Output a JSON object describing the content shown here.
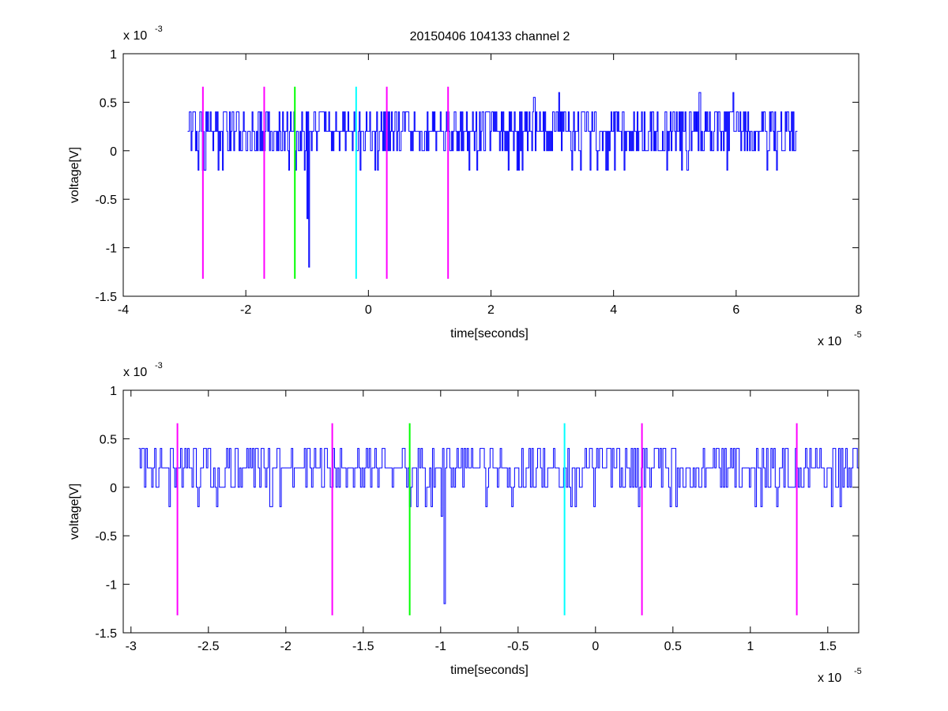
{
  "figure_title": "20150406 104133 channel 2",
  "colors": {
    "signal": "#0000ff",
    "magenta": "#ff00ff",
    "green": "#00ff00",
    "cyan": "#00ffff",
    "axes": "#000000",
    "background": "#ffffff"
  },
  "chart_data": [
    {
      "type": "line",
      "title": "20150406 104133 channel 2",
      "xlabel": "time[seconds]",
      "ylabel": "voltage[V]",
      "x_exponent_label": "x 10",
      "x_exponent": "-5",
      "y_exponent_label": "x 10",
      "y_exponent": "-3",
      "xlim": [
        -4,
        8
      ],
      "ylim": [
        -1.5,
        1
      ],
      "xticks": [
        -4,
        -2,
        0,
        2,
        4,
        6,
        8
      ],
      "xtick_labels": [
        "-4",
        "-2",
        "0",
        "2",
        "4",
        "6",
        "8"
      ],
      "yticks": [
        -1.5,
        -1,
        -0.5,
        0,
        0.5,
        1
      ],
      "ytick_labels": [
        "-1.5",
        "-1",
        "-0.5",
        "0",
        "0.5",
        "1"
      ],
      "grid": false,
      "series": [
        {
          "x_range": [
            -2.95,
            7.0
          ],
          "baseline": 0.2,
          "noise_levels": [
            -0.2,
            0,
            0.2,
            0.4
          ],
          "spikes": [
            {
              "x": -0.97,
              "y": -1.2
            },
            {
              "x": -1.0,
              "y": -0.7
            },
            {
              "x": 2.7,
              "y": 0.55
            },
            {
              "x": 3.1,
              "y": 0.6
            },
            {
              "x": 5.4,
              "y": 0.6
            },
            {
              "x": 5.95,
              "y": 0.6
            }
          ]
        }
      ],
      "markers": [
        {
          "x": -2.7,
          "color": "magenta",
          "y_range": [
            -1.32,
            0.66
          ]
        },
        {
          "x": -1.7,
          "color": "magenta",
          "y_range": [
            -1.32,
            0.66
          ]
        },
        {
          "x": -1.2,
          "color": "green",
          "y_range": [
            -1.32,
            0.66
          ]
        },
        {
          "x": -0.2,
          "color": "cyan",
          "y_range": [
            -1.32,
            0.66
          ]
        },
        {
          "x": 0.3,
          "color": "magenta",
          "y_range": [
            -1.32,
            0.66
          ]
        },
        {
          "x": 1.3,
          "color": "magenta",
          "y_range": [
            -1.32,
            0.66
          ]
        }
      ]
    },
    {
      "type": "line",
      "title": "",
      "xlabel": "time[seconds]",
      "ylabel": "voltage[V]",
      "x_exponent_label": "x 10",
      "x_exponent": "-5",
      "y_exponent_label": "x 10",
      "y_exponent": "-3",
      "xlim": [
        -3.05,
        1.7
      ],
      "ylim": [
        -1.5,
        1
      ],
      "xticks": [
        -3,
        -2.5,
        -2,
        -1.5,
        -1,
        -0.5,
        0,
        0.5,
        1,
        1.5
      ],
      "xtick_labels": [
        "-3",
        "-2.5",
        "-2",
        "-1.5",
        "-1",
        "-0.5",
        "0",
        "0.5",
        "1",
        "1.5"
      ],
      "yticks": [
        -1.5,
        -1,
        -0.5,
        0,
        0.5,
        1
      ],
      "ytick_labels": [
        "-1.5",
        "-1",
        "-0.5",
        "0",
        "0.5",
        "1"
      ],
      "grid": false,
      "series": [
        {
          "x_range": [
            -2.95,
            1.7
          ],
          "baseline": 0.2,
          "noise_levels": [
            -0.2,
            0,
            0.2,
            0.4
          ],
          "spikes": [
            {
              "x": -0.98,
              "y": -1.2
            },
            {
              "x": -1.0,
              "y": -0.3
            },
            {
              "x": -1.2,
              "y": -0.2
            },
            {
              "x": -2.45,
              "y": -0.2
            },
            {
              "x": 1.17,
              "y": -0.2
            }
          ]
        }
      ],
      "markers": [
        {
          "x": -2.7,
          "color": "magenta",
          "y_range": [
            -1.32,
            0.66
          ]
        },
        {
          "x": -1.7,
          "color": "magenta",
          "y_range": [
            -1.32,
            0.66
          ]
        },
        {
          "x": -1.2,
          "color": "green",
          "y_range": [
            -1.32,
            0.66
          ]
        },
        {
          "x": -0.2,
          "color": "cyan",
          "y_range": [
            -1.32,
            0.66
          ]
        },
        {
          "x": 0.3,
          "color": "magenta",
          "y_range": [
            -1.32,
            0.66
          ]
        },
        {
          "x": 1.3,
          "color": "magenta",
          "y_range": [
            -1.32,
            0.66
          ]
        }
      ]
    }
  ]
}
